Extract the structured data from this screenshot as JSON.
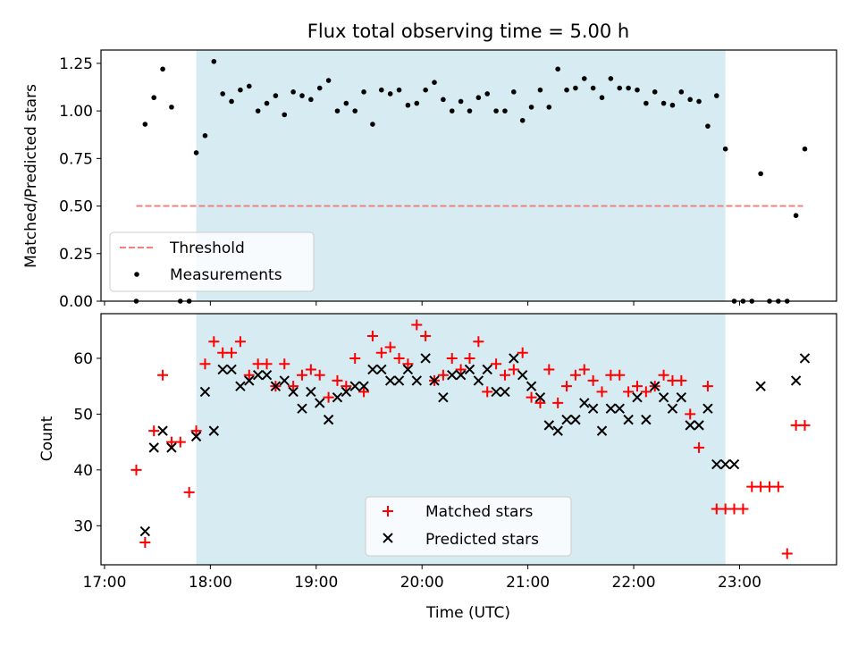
{
  "chart_data": [
    {
      "type": "scatter",
      "title": "Flux total observing time = 5.00 h",
      "xlabel": "",
      "ylabel": "Matched/Predicted stars",
      "ylim": [
        0,
        1.32
      ],
      "yticks": [
        "0.00",
        "0.25",
        "0.50",
        "0.75",
        "1.00",
        "1.25"
      ],
      "legend_position": "lower-left",
      "shaded_span": [
        "17:52",
        "22:52"
      ],
      "threshold": {
        "name": "Threshold",
        "value": 0.5,
        "x_start": "17:18",
        "x_end": "23:36",
        "color": "#f08080"
      },
      "series": [
        {
          "name": "Measurements",
          "color": "#000000",
          "x": [
            "17:18",
            "17:23",
            "17:28",
            "17:33",
            "17:38",
            "17:43",
            "17:48",
            "17:52",
            "17:57",
            "18:02",
            "18:07",
            "18:12",
            "18:17",
            "18:22",
            "18:27",
            "18:32",
            "18:37",
            "18:42",
            "18:47",
            "18:52",
            "18:57",
            "19:02",
            "19:07",
            "19:12",
            "19:17",
            "19:22",
            "19:27",
            "19:32",
            "19:37",
            "19:42",
            "19:47",
            "19:52",
            "19:57",
            "20:02",
            "20:07",
            "20:12",
            "20:17",
            "20:22",
            "20:27",
            "20:32",
            "20:37",
            "20:42",
            "20:47",
            "20:52",
            "20:57",
            "21:02",
            "21:07",
            "21:12",
            "21:17",
            "21:22",
            "21:27",
            "21:32",
            "21:37",
            "21:42",
            "21:47",
            "21:52",
            "21:57",
            "22:02",
            "22:07",
            "22:12",
            "22:17",
            "22:22",
            "22:27",
            "22:32",
            "22:37",
            "22:42",
            "22:47",
            "22:52",
            "22:57",
            "23:02",
            "23:07",
            "23:12",
            "23:17",
            "23:22",
            "23:27",
            "23:32",
            "23:37"
          ],
          "y": [
            0.0,
            0.93,
            1.07,
            1.22,
            1.02,
            0.0,
            0.0,
            0.78,
            0.87,
            1.26,
            1.09,
            1.05,
            1.11,
            1.13,
            1.0,
            1.04,
            1.08,
            0.98,
            1.1,
            1.08,
            1.06,
            1.12,
            1.16,
            1.0,
            1.04,
            1.0,
            1.1,
            0.93,
            1.11,
            1.09,
            1.11,
            1.03,
            1.04,
            1.11,
            1.15,
            1.06,
            1.0,
            1.05,
            1.0,
            1.07,
            1.09,
            1.0,
            1.0,
            1.1,
            0.95,
            1.02,
            1.11,
            1.02,
            1.22,
            1.11,
            1.12,
            1.17,
            1.12,
            1.07,
            1.17,
            1.12,
            1.12,
            1.11,
            1.04,
            1.1,
            1.04,
            1.03,
            1.1,
            1.06,
            1.05,
            0.92,
            1.08,
            0.8,
            0.0,
            0.0,
            0.0,
            0.67,
            0.0,
            0.0,
            0.0,
            0.45,
            0.8
          ]
        }
      ]
    },
    {
      "type": "scatter",
      "title": "",
      "xlabel": "Time (UTC)",
      "ylabel": "Count",
      "ylim": [
        23,
        68
      ],
      "yticks": [
        "30",
        "40",
        "50",
        "60"
      ],
      "xticks": [
        "17:00",
        "18:00",
        "19:00",
        "20:00",
        "21:00",
        "22:00",
        "23:00"
      ],
      "legend_position": "lower-center",
      "shaded_span": [
        "17:52",
        "22:52"
      ],
      "series": [
        {
          "name": "Matched stars",
          "marker": "plus",
          "color": "#ff0000",
          "x": [
            "17:18",
            "17:23",
            "17:28",
            "17:33",
            "17:38",
            "17:43",
            "17:48",
            "17:52",
            "17:57",
            "18:02",
            "18:07",
            "18:12",
            "18:17",
            "18:22",
            "18:27",
            "18:32",
            "18:37",
            "18:42",
            "18:47",
            "18:52",
            "18:57",
            "19:02",
            "19:07",
            "19:12",
            "19:17",
            "19:22",
            "19:27",
            "19:32",
            "19:37",
            "19:42",
            "19:47",
            "19:52",
            "19:57",
            "20:02",
            "20:07",
            "20:12",
            "20:17",
            "20:22",
            "20:27",
            "20:32",
            "20:37",
            "20:42",
            "20:47",
            "20:52",
            "20:57",
            "21:02",
            "21:07",
            "21:12",
            "21:17",
            "21:22",
            "21:27",
            "21:32",
            "21:37",
            "21:42",
            "21:47",
            "21:52",
            "21:57",
            "22:02",
            "22:07",
            "22:12",
            "22:17",
            "22:22",
            "22:27",
            "22:32",
            "22:37",
            "22:42",
            "22:47",
            "22:52",
            "22:57",
            "23:02",
            "23:07",
            "23:12",
            "23:17",
            "23:22",
            "23:27",
            "23:32",
            "23:37"
          ],
          "y": [
            40,
            27,
            47,
            57,
            45,
            45,
            36,
            47,
            59,
            63,
            61,
            61,
            63,
            57,
            59,
            59,
            55,
            59,
            55,
            57,
            58,
            57,
            53,
            56,
            55,
            60,
            54,
            64,
            61,
            62,
            60,
            59,
            66,
            64,
            56,
            57,
            60,
            58,
            60,
            63,
            54,
            59,
            57,
            58,
            61,
            53,
            52,
            58,
            52,
            55,
            57,
            58,
            56,
            54,
            57,
            57,
            54,
            55,
            54,
            55,
            57,
            56,
            56,
            50,
            44,
            55,
            33,
            33,
            33,
            33,
            37,
            37,
            37,
            37,
            25,
            48,
            48
          ]
        },
        {
          "name": "Predicted stars",
          "marker": "x",
          "color": "#000000",
          "x": [
            "17:23",
            "17:28",
            "17:33",
            "17:38",
            "17:52",
            "17:57",
            "18:02",
            "18:07",
            "18:12",
            "18:17",
            "18:22",
            "18:27",
            "18:32",
            "18:37",
            "18:42",
            "18:47",
            "18:52",
            "18:57",
            "19:02",
            "19:07",
            "19:12",
            "19:17",
            "19:22",
            "19:27",
            "19:32",
            "19:37",
            "19:42",
            "19:47",
            "19:52",
            "19:57",
            "20:02",
            "20:07",
            "20:12",
            "20:17",
            "20:22",
            "20:27",
            "20:32",
            "20:37",
            "20:42",
            "20:47",
            "20:52",
            "20:57",
            "21:02",
            "21:07",
            "21:12",
            "21:17",
            "21:22",
            "21:27",
            "21:32",
            "21:37",
            "21:42",
            "21:47",
            "21:52",
            "21:57",
            "22:02",
            "22:07",
            "22:12",
            "22:17",
            "22:22",
            "22:27",
            "22:32",
            "22:37",
            "22:42",
            "22:47",
            "22:52",
            "22:57",
            "23:12",
            "23:32",
            "23:37"
          ],
          "y": [
            29,
            44,
            47,
            44,
            46,
            54,
            47,
            58,
            58,
            55,
            56,
            57,
            57,
            55,
            56,
            54,
            51,
            54,
            52,
            49,
            53,
            54,
            55,
            55,
            58,
            58,
            56,
            56,
            58,
            56,
            60,
            56,
            53,
            57,
            57,
            58,
            56,
            58,
            54,
            54,
            60,
            57,
            55,
            53,
            48,
            47,
            49,
            49,
            52,
            51,
            47,
            51,
            51,
            49,
            53,
            49,
            55,
            53,
            51,
            53,
            48,
            48,
            51,
            41,
            41,
            41,
            55,
            56,
            60
          ]
        }
      ]
    }
  ]
}
